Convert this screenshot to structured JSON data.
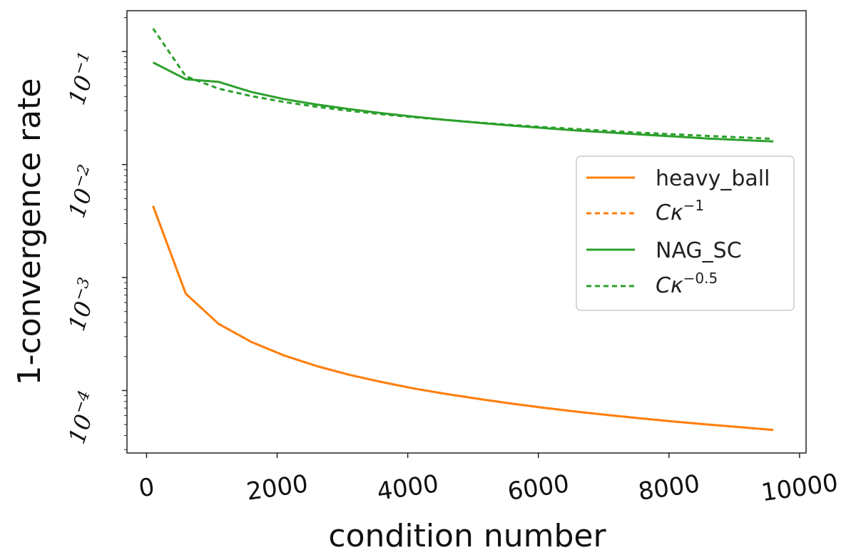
{
  "chart_data": {
    "type": "line",
    "xlabel": "condition number",
    "ylabel": "1-convergence rate",
    "y_scale": "log",
    "xlim": [
      -300,
      10100
    ],
    "ylim": [
      2.8e-05,
      0.23
    ],
    "grid": false,
    "x_ticks": [
      {
        "value": 0,
        "label": "0"
      },
      {
        "value": 2000,
        "label": "2000"
      },
      {
        "value": 4000,
        "label": "4000"
      },
      {
        "value": 6000,
        "label": "6000"
      },
      {
        "value": 8000,
        "label": "8000"
      },
      {
        "value": 10000,
        "label": "10000"
      }
    ],
    "y_ticks": [
      {
        "value": 0.1,
        "base": "10",
        "exp": "−1"
      },
      {
        "value": 0.01,
        "base": "10",
        "exp": "−2"
      },
      {
        "value": 0.001,
        "base": "10",
        "exp": "−3"
      },
      {
        "value": 0.0001,
        "base": "10",
        "exp": "−4"
      }
    ],
    "legend_position": "center-right",
    "series": [
      {
        "name": "heavy_ball",
        "color": "#ff7f0e",
        "style": "solid",
        "x": [
          100,
          600,
          1100,
          1600,
          2100,
          2600,
          3100,
          3600,
          4100,
          4600,
          5100,
          5600,
          6100,
          6600,
          7100,
          7600,
          8100,
          8600,
          9100,
          9600
        ],
        "y": [
          0.0043,
          0.00072,
          0.00039,
          0.00027,
          0.000205,
          0.000165,
          0.000138,
          0.000119,
          0.000104,
          9.3e-05,
          8.4e-05,
          7.65e-05,
          7.02e-05,
          6.49e-05,
          6.04e-05,
          5.65e-05,
          5.3e-05,
          5e-05,
          4.73e-05,
          4.48e-05
        ]
      },
      {
        "name_base": "Cκ",
        "name_exp": "−1",
        "color": "#ff7f0e",
        "style": "dashed",
        "x": [
          100,
          600,
          1100,
          1600,
          2100,
          2600,
          3100,
          3600,
          4100,
          4600,
          5100,
          5600,
          6100,
          6600,
          7100,
          7600,
          8100,
          8600,
          9100,
          9600
        ],
        "y": [
          0.0043,
          0.00072,
          0.00039,
          0.00027,
          0.000205,
          0.000165,
          0.000138,
          0.000119,
          0.000104,
          9.3e-05,
          8.4e-05,
          7.65e-05,
          7.02e-05,
          6.49e-05,
          6.04e-05,
          5.65e-05,
          5.3e-05,
          5e-05,
          4.73e-05,
          4.48e-05
        ]
      },
      {
        "name": "NAG_SC",
        "color": "#2ca02c",
        "style": "solid",
        "x": [
          100,
          600,
          1100,
          1600,
          2100,
          2600,
          3100,
          3600,
          4100,
          4600,
          5100,
          5600,
          6100,
          6600,
          7100,
          7600,
          8100,
          8600,
          9100,
          9600
        ],
        "y": [
          0.08,
          0.057,
          0.054,
          0.044,
          0.038,
          0.034,
          0.031,
          0.0285,
          0.0265,
          0.0248,
          0.0234,
          0.0221,
          0.021,
          0.02,
          0.0192,
          0.0184,
          0.0177,
          0.017,
          0.0165,
          0.016
        ]
      },
      {
        "name_base": "Cκ",
        "name_exp": "−0.5",
        "color": "#2ca02c",
        "style": "dashed",
        "x": [
          100,
          600,
          1100,
          1600,
          2100,
          2600,
          3100,
          3600,
          4100,
          4600,
          5100,
          5600,
          6100,
          6600,
          7100,
          7600,
          8100,
          8600,
          9100,
          9600
        ],
        "y": [
          0.16,
          0.0605,
          0.047,
          0.0404,
          0.0358,
          0.0325,
          0.0299,
          0.0279,
          0.0262,
          0.0248,
          0.0235,
          0.0224,
          0.0214,
          0.0206,
          0.0198,
          0.0191,
          0.0185,
          0.0179,
          0.0174,
          0.0169
        ]
      }
    ]
  }
}
